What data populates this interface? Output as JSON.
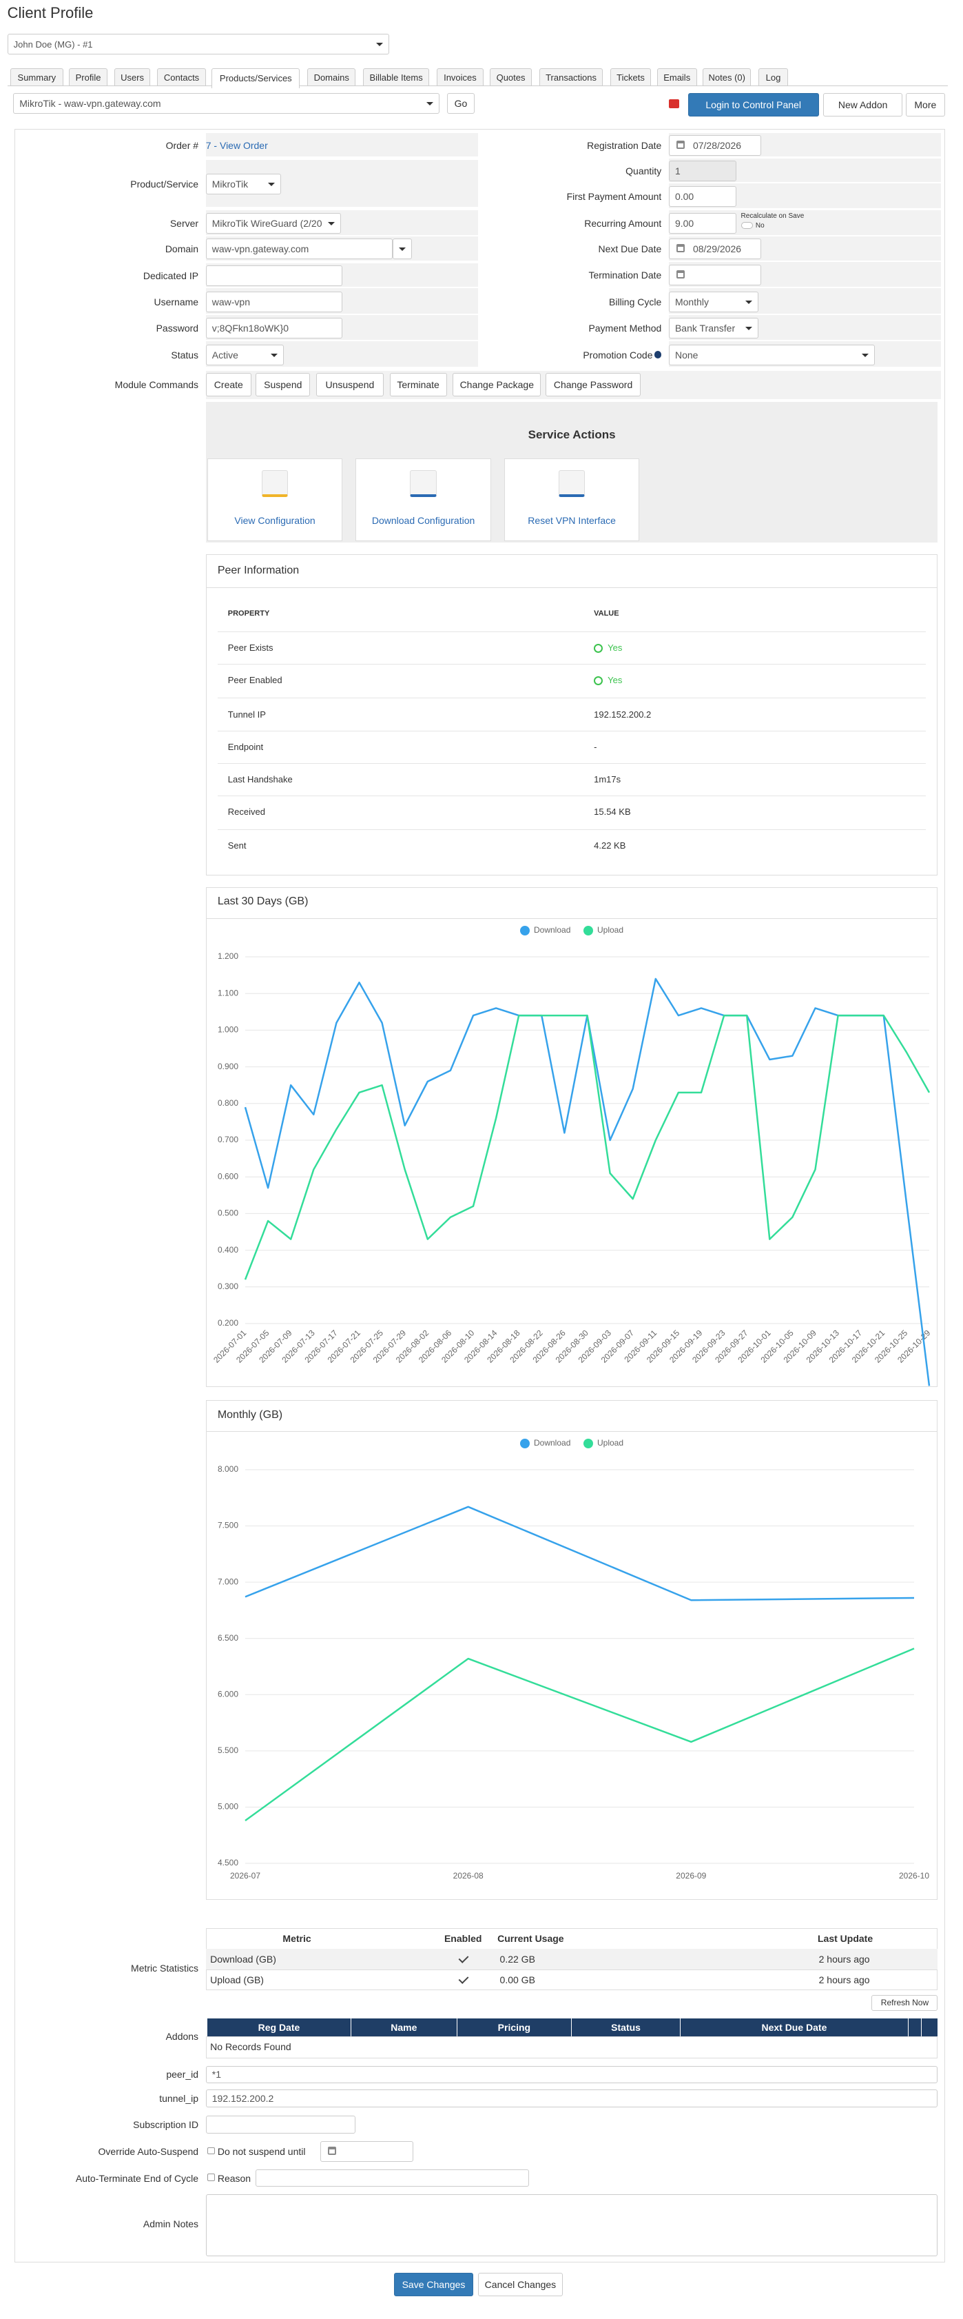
{
  "header": {
    "title": "Client Profile",
    "client": "John Doe (MG) - #1"
  },
  "tabs": [
    "Summary",
    "Profile",
    "Users",
    "Contacts",
    "Products/Services",
    "Domains",
    "Billable Items",
    "Invoices",
    "Quotes",
    "Transactions",
    "Tickets",
    "Emails",
    "Notes (0)",
    "Log"
  ],
  "service_select": "MikroTik - waw-vpn.gateway.com",
  "toolbar": {
    "go": "Go",
    "login": "Login to Control Panel",
    "new_addon": "New Addon",
    "more": "More"
  },
  "fields": {
    "left": [
      {
        "label": "Order #",
        "value": "7 - View Order"
      },
      {
        "label": "Product/Service",
        "value": "MikroTik"
      },
      {
        "label": "Server",
        "value": "MikroTik WireGuard (2/20"
      },
      {
        "label": "Domain",
        "value": "waw-vpn.gateway.com"
      },
      {
        "label": "Dedicated IP"
      },
      {
        "label": "Username",
        "value": "waw-vpn"
      },
      {
        "label": "Password",
        "value": "v;8QFkn18oWK}0"
      },
      {
        "label": "Status",
        "value": "Active"
      }
    ],
    "right": [
      {
        "label": "Registration Date",
        "value": "07/28/2026"
      },
      {
        "label": "Quantity",
        "value": "1"
      },
      {
        "label": "First Payment Amount",
        "value": "0.00"
      },
      {
        "label": "Recurring Amount",
        "value": "9.00",
        "note": "Recalculate on Save",
        "toggle": "No"
      },
      {
        "label": "Next Due Date",
        "value": "08/29/2026"
      },
      {
        "label": "Termination Date"
      },
      {
        "label": "Billing Cycle",
        "value": "Monthly"
      },
      {
        "label": "Payment Method",
        "value": "Bank Transfer"
      },
      {
        "label": "Promotion Code",
        "value": "None"
      }
    ]
  },
  "module_commands": {
    "label": "Module Commands",
    "buttons": [
      "Create",
      "Suspend",
      "Unsuspend",
      "Terminate",
      "Change Package",
      "Change Password"
    ]
  },
  "service_actions": {
    "title": "Service Actions",
    "actions": [
      "View Configuration",
      "Download Configuration",
      "Reset VPN Interface"
    ]
  },
  "peer_info": {
    "title": "Peer Information",
    "headers": [
      "PROPERTY",
      "VALUE"
    ],
    "rows": [
      [
        "Peer Exists",
        "Yes"
      ],
      [
        "Peer Enabled",
        "Yes"
      ],
      [
        "Tunnel IP",
        "192.152.200.2"
      ],
      [
        "Endpoint",
        "-"
      ],
      [
        "Last Handshake",
        "1m17s"
      ],
      [
        "Received",
        "15.54 KB"
      ],
      [
        "Sent",
        "4.22 KB"
      ]
    ]
  },
  "chart_data": [
    {
      "type": "line",
      "title": "Last 30 Days (GB)",
      "legend": "top",
      "grid": true,
      "categories": [
        "2026-07-01",
        "2026-07-05",
        "2026-07-09",
        "2026-07-13",
        "2026-07-17",
        "2026-07-21",
        "2026-07-25",
        "2026-07-29",
        "2026-08-02",
        "2026-08-06",
        "2026-08-10",
        "2026-08-14",
        "2026-08-18",
        "2026-08-22",
        "2026-08-26",
        "2026-08-30",
        "2026-09-03",
        "2026-09-07",
        "2026-09-11",
        "2026-09-15",
        "2026-09-19",
        "2026-09-23",
        "2026-09-27",
        "2026-10-01",
        "2026-10-05",
        "2026-10-09",
        "2026-10-13",
        "2026-10-17",
        "2026-10-21",
        "2026-10-25",
        "2026-10-29"
      ],
      "series": [
        {
          "name": "Download",
          "color": "#36a2eb",
          "values": [
            0.79,
            0.57,
            0.85,
            0.77,
            1.02,
            1.13,
            1.02,
            0.74,
            0.86,
            0.89,
            1.04,
            1.06,
            1.04,
            1.04,
            0.72,
            1.04,
            0.7,
            0.84,
            1.14,
            1.04,
            1.06,
            1.04,
            1.04,
            0.92,
            0.93,
            1.06,
            1.04,
            1.04,
            1.04,
            0.53,
            0.03
          ]
        },
        {
          "name": "Upload",
          "color": "#33dd99",
          "values": [
            0.32,
            0.48,
            0.43,
            0.62,
            0.73,
            0.83,
            0.85,
            0.62,
            0.43,
            0.49,
            0.52,
            0.76,
            1.04,
            1.04,
            1.04,
            1.04,
            0.61,
            0.54,
            0.7,
            0.83,
            0.83,
            1.04,
            1.04,
            0.43,
            0.49,
            0.62,
            1.04,
            1.04,
            1.04,
            0.94,
            0.83
          ]
        }
      ],
      "ylim": [
        0.2,
        1.2
      ],
      "yticks": [
        {
          "value": 0.2,
          "label": "0.200"
        },
        {
          "value": 0.3,
          "label": "0.300"
        },
        {
          "value": 0.4,
          "label": "0.400"
        },
        {
          "value": 0.5,
          "label": "0.500"
        },
        {
          "value": 0.6,
          "label": "0.600"
        },
        {
          "value": 0.7,
          "label": "0.700"
        },
        {
          "value": 0.8,
          "label": "0.800"
        },
        {
          "value": 0.9,
          "label": "0.900"
        },
        {
          "value": 1.0,
          "label": "1.000"
        },
        {
          "value": 1.1,
          "label": "1.100"
        },
        {
          "value": 1.2,
          "label": "1.200"
        }
      ]
    },
    {
      "type": "line",
      "title": "Monthly (GB)",
      "legend": "top",
      "grid": true,
      "categories": [
        "2026-07",
        "2026-08",
        "2026-09",
        "2026-10"
      ],
      "series": [
        {
          "name": "Download",
          "color": "#36a2eb",
          "values": [
            6.87,
            7.67,
            6.84,
            6.86
          ]
        },
        {
          "name": "Upload",
          "color": "#33dd99",
          "values": [
            4.88,
            6.32,
            5.58,
            6.41
          ]
        }
      ],
      "ylim": [
        4.5,
        8.0
      ],
      "yticks": [
        {
          "value": 4.5,
          "label": "4.500"
        },
        {
          "value": 5.0,
          "label": "5.000"
        },
        {
          "value": 5.5,
          "label": "5.500"
        },
        {
          "value": 6.0,
          "label": "6.000"
        },
        {
          "value": 6.5,
          "label": "6.500"
        },
        {
          "value": 7.0,
          "label": "7.000"
        },
        {
          "value": 7.5,
          "label": "7.500"
        },
        {
          "value": 8.0,
          "label": "8.000"
        }
      ]
    }
  ],
  "metric_statistics": {
    "label": "Metric Statistics",
    "headers": [
      "Metric",
      "Enabled",
      "Current Usage",
      "Last Update"
    ],
    "rows": [
      {
        "metric": "Download (GB)",
        "usage": "0.22 GB",
        "updated": "2 hours ago"
      },
      {
        "metric": "Upload (GB)",
        "usage": "0.00 GB",
        "updated": "2 hours ago"
      }
    ],
    "refresh": "Refresh Now"
  },
  "addons": {
    "label": "Addons",
    "headers": [
      "Reg Date",
      "Name",
      "Pricing",
      "Status",
      "Next Due Date"
    ],
    "empty": "No Records Found"
  },
  "custom_fields": [
    {
      "label": "peer_id",
      "value": "*1"
    },
    {
      "label": "tunnel_ip",
      "value": "192.152.200.2"
    },
    {
      "label": "Subscription ID"
    }
  ],
  "override_suspend": {
    "label": "Override Auto-Suspend",
    "checkbox": "Do not suspend until"
  },
  "auto_terminate": {
    "label": "Auto-Terminate End of Cycle",
    "checkbox": "Reason"
  },
  "admin_notes": {
    "label": "Admin Notes"
  },
  "footer": {
    "save": "Save Changes",
    "cancel": "Cancel Changes"
  }
}
